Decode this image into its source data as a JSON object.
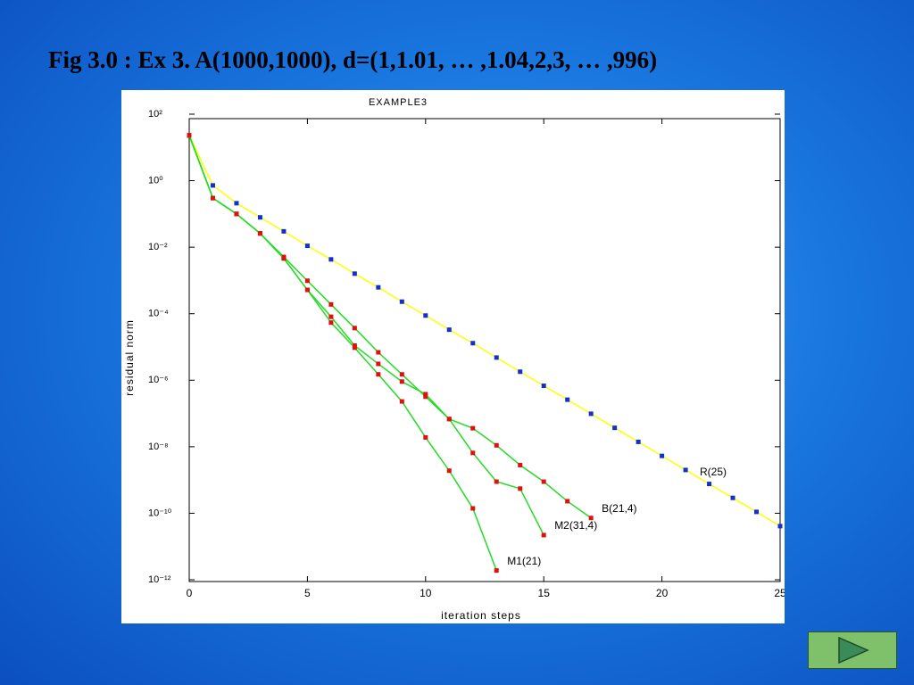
{
  "slide_title": "Fig 3.0 : Ex 3. A(1000,1000), d=(1,1.01, … ,1.04,2,3, … ,996)",
  "chart_data": {
    "type": "line",
    "title": "EXAMPLE3",
    "x_label": "iteration steps",
    "y_label": "residual norm",
    "log_y": true,
    "xlim": [
      0,
      25
    ],
    "xticks": [
      0,
      5,
      10,
      15,
      20,
      25
    ],
    "ylim": [
      1e-12,
      100
    ],
    "yticks": [
      {
        "value": 1e-12,
        "label": "10⁻¹²"
      },
      {
        "value": 1e-10,
        "label": "10⁻¹⁰"
      },
      {
        "value": 1e-08,
        "label": "10⁻⁸"
      },
      {
        "value": 1e-06,
        "label": "10⁻⁶"
      },
      {
        "value": 0.0001,
        "label": "10⁻⁴"
      },
      {
        "value": 0.01,
        "label": "10⁻²"
      },
      {
        "value": 1,
        "label": "10⁰"
      },
      {
        "value": 100,
        "label": "10²"
      }
    ],
    "series": [
      {
        "name": "R(25)",
        "color": "#ffff00",
        "marker_color": "#1030d0",
        "x": [
          0,
          1,
          2,
          3,
          4,
          5,
          6,
          7,
          8,
          9,
          10,
          11,
          12,
          13,
          14,
          15,
          16,
          17,
          18,
          19,
          20,
          21,
          22,
          23,
          24,
          25
        ],
        "values": [
          23,
          0.72,
          0.21,
          0.079,
          0.03,
          0.011,
          0.0043,
          0.0016,
          0.00062,
          0.00023,
          8.8e-05,
          3.3e-05,
          1.3e-05,
          4.8e-06,
          1.8e-06,
          6.8e-07,
          2.6e-07,
          9.8e-08,
          3.7e-08,
          1.4e-08,
          5.3e-09,
          2e-09,
          7.6e-10,
          2.9e-10,
          1.1e-10,
          4.1e-11
        ]
      },
      {
        "name": "B(21,4)",
        "color": "#22dd22",
        "marker_color": "#e01010",
        "x": [
          0,
          1,
          2,
          3,
          4,
          5,
          6,
          7,
          8,
          9,
          10,
          11,
          12,
          13,
          14,
          15,
          16,
          17
        ],
        "values": [
          23,
          0.3,
          0.1,
          0.026,
          0.0051,
          0.00098,
          0.00019,
          3.7e-05,
          6.9e-06,
          1.5e-06,
          3.2e-07,
          6.8e-08,
          3.6e-08,
          1.1e-08,
          2.8e-09,
          8.9e-10,
          2.3e-10,
          7.2e-11
        ]
      },
      {
        "name": "M2(31,4)",
        "color": "#22dd22",
        "marker_color": "#e01010",
        "x": [
          0,
          1,
          2,
          3,
          4,
          5,
          6,
          7,
          8,
          9,
          10,
          11,
          12,
          13,
          14,
          15
        ],
        "values": [
          23,
          0.3,
          0.1,
          0.026,
          0.0046,
          0.00052,
          8.1e-05,
          1.1e-05,
          3.1e-06,
          9.1e-07,
          3.8e-07,
          6.8e-08,
          6.5e-09,
          8.9e-10,
          5.5e-10,
          2.2e-11
        ]
      },
      {
        "name": "M1(21)",
        "color": "#22dd22",
        "marker_color": "#e01010",
        "x": [
          0,
          1,
          2,
          3,
          4,
          5,
          6,
          7,
          8,
          9,
          10,
          11,
          12,
          13
        ],
        "values": [
          23,
          0.3,
          0.1,
          0.026,
          0.0046,
          0.00052,
          5.4e-05,
          9.5e-06,
          1.5e-06,
          2.3e-07,
          1.9e-08,
          1.9e-09,
          1.4e-10,
          1.9e-12
        ]
      }
    ]
  }
}
